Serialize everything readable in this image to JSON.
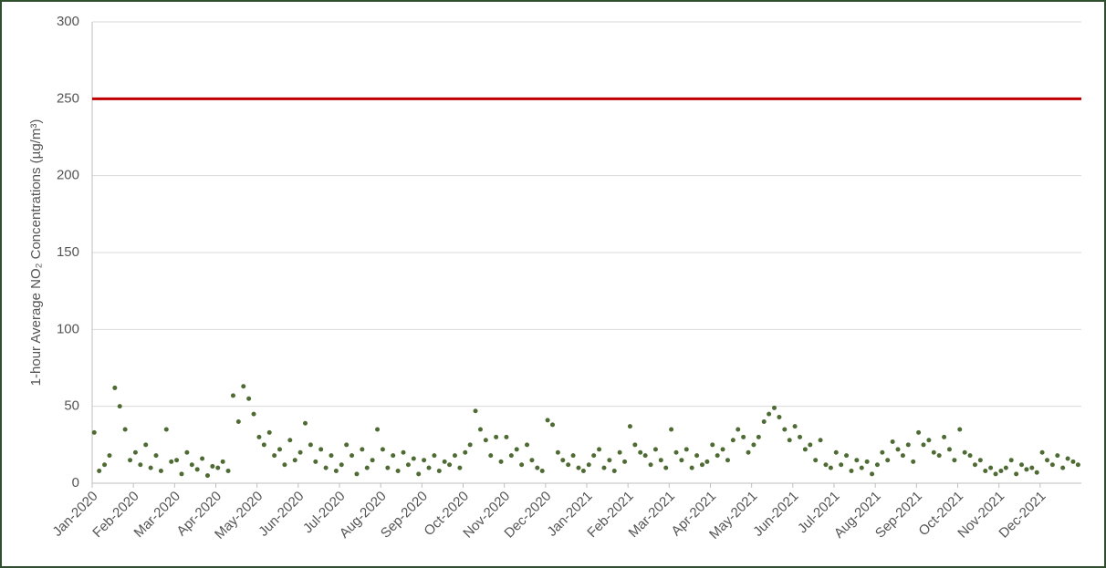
{
  "chart_data": {
    "type": "scatter",
    "y_label": "1-hour Average NO₂ Concentrations (µg/m³)",
    "ylim": [
      0,
      300
    ],
    "yticks": [
      0,
      50,
      100,
      150,
      200,
      250,
      300
    ],
    "xlim": [
      0,
      24
    ],
    "xticks": [
      {
        "value": 0,
        "label": "Jan-2020"
      },
      {
        "value": 1,
        "label": "Feb-2020"
      },
      {
        "value": 2,
        "label": "Mar-2020"
      },
      {
        "value": 3,
        "label": "Apr-2020"
      },
      {
        "value": 4,
        "label": "May-2020"
      },
      {
        "value": 5,
        "label": "Jun-2020"
      },
      {
        "value": 6,
        "label": "Jul-2020"
      },
      {
        "value": 7,
        "label": "Aug-2020"
      },
      {
        "value": 8,
        "label": "Sep-2020"
      },
      {
        "value": 9,
        "label": "Oct-2020"
      },
      {
        "value": 10,
        "label": "Nov-2020"
      },
      {
        "value": 11,
        "label": "Dec-2020"
      },
      {
        "value": 12,
        "label": "Jan-2021"
      },
      {
        "value": 13,
        "label": "Feb-2021"
      },
      {
        "value": 14,
        "label": "Mar-2021"
      },
      {
        "value": 15,
        "label": "Apr-2021"
      },
      {
        "value": 16,
        "label": "May-2021"
      },
      {
        "value": 17,
        "label": "Jun-2021"
      },
      {
        "value": 18,
        "label": "Jul-2021"
      },
      {
        "value": 19,
        "label": "Aug-2021"
      },
      {
        "value": 20,
        "label": "Sep-2021"
      },
      {
        "value": 21,
        "label": "Oct-2021"
      },
      {
        "value": 22,
        "label": "Nov-2021"
      },
      {
        "value": 23,
        "label": "Dec-2021"
      }
    ],
    "grid": true,
    "reference_line": {
      "value": 250,
      "color": "#c00000"
    },
    "series": [
      {
        "color": "#4e6b34",
        "x": [
          0.05,
          0.17,
          0.3,
          0.42,
          0.55,
          0.67,
          0.8,
          0.92,
          1.05,
          1.17,
          1.3,
          1.42,
          1.55,
          1.67,
          1.8,
          1.92,
          2.05,
          2.17,
          2.3,
          2.42,
          2.55,
          2.67,
          2.8,
          2.92,
          3.05,
          3.17,
          3.3,
          3.42,
          3.55,
          3.67,
          3.8,
          3.92,
          4.05,
          4.17,
          4.3,
          4.42,
          4.55,
          4.67,
          4.8,
          4.92,
          5.05,
          5.17,
          5.3,
          5.42,
          5.55,
          5.67,
          5.8,
          5.92,
          6.05,
          6.17,
          6.3,
          6.42,
          6.55,
          6.67,
          6.8,
          6.92,
          7.05,
          7.17,
          7.3,
          7.42,
          7.55,
          7.67,
          7.8,
          7.92,
          8.05,
          8.17,
          8.3,
          8.42,
          8.55,
          8.67,
          8.8,
          8.92,
          9.05,
          9.17,
          9.3,
          9.42,
          9.55,
          9.67,
          9.8,
          9.92,
          10.05,
          10.17,
          10.3,
          10.42,
          10.55,
          10.67,
          10.8,
          10.92,
          11.05,
          11.17,
          11.3,
          11.42,
          11.55,
          11.67,
          11.8,
          11.92,
          12.05,
          12.17,
          12.3,
          12.42,
          12.55,
          12.67,
          12.8,
          12.92,
          13.05,
          13.17,
          13.3,
          13.42,
          13.55,
          13.67,
          13.8,
          13.92,
          14.05,
          14.17,
          14.3,
          14.42,
          14.55,
          14.67,
          14.8,
          14.92,
          15.05,
          15.17,
          15.3,
          15.42,
          15.55,
          15.67,
          15.8,
          15.92,
          16.05,
          16.17,
          16.3,
          16.42,
          16.55,
          16.67,
          16.8,
          16.92,
          17.05,
          17.17,
          17.3,
          17.42,
          17.55,
          17.67,
          17.8,
          17.92,
          18.05,
          18.17,
          18.3,
          18.42,
          18.55,
          18.67,
          18.8,
          18.92,
          19.05,
          19.17,
          19.3,
          19.42,
          19.55,
          19.67,
          19.8,
          19.92,
          20.05,
          20.17,
          20.3,
          20.42,
          20.55,
          20.67,
          20.8,
          20.92,
          21.05,
          21.17,
          21.3,
          21.42,
          21.55,
          21.67,
          21.8,
          21.92,
          22.05,
          22.17,
          22.3,
          22.42,
          22.55,
          22.67,
          22.8,
          22.92,
          23.05,
          23.17,
          23.3,
          23.42,
          23.55,
          23.67,
          23.8,
          23.92
        ],
        "values": [
          33,
          8,
          12,
          18,
          62,
          50,
          35,
          15,
          20,
          12,
          25,
          10,
          18,
          8,
          35,
          14,
          15,
          6,
          20,
          12,
          9,
          16,
          5,
          11,
          10,
          14,
          8,
          57,
          40,
          63,
          55,
          45,
          30,
          25,
          33,
          18,
          22,
          12,
          28,
          15,
          20,
          39,
          25,
          14,
          22,
          10,
          18,
          8,
          12,
          25,
          18,
          6,
          22,
          10,
          15,
          35,
          22,
          10,
          18,
          8,
          20,
          12,
          16,
          6,
          15,
          10,
          18,
          8,
          14,
          12,
          18,
          10,
          20,
          25,
          47,
          35,
          28,
          18,
          30,
          14,
          30,
          18,
          22,
          12,
          25,
          15,
          10,
          8,
          41,
          38,
          20,
          15,
          12,
          18,
          10,
          8,
          12,
          18,
          22,
          10,
          15,
          8,
          20,
          14,
          37,
          25,
          20,
          18,
          12,
          22,
          15,
          10,
          35,
          20,
          15,
          22,
          10,
          18,
          12,
          14,
          25,
          18,
          22,
          15,
          28,
          35,
          30,
          20,
          25,
          30,
          40,
          45,
          49,
          43,
          35,
          28,
          37,
          30,
          22,
          25,
          15,
          28,
          12,
          10,
          20,
          12,
          18,
          8,
          15,
          10,
          14,
          6,
          12,
          20,
          15,
          27,
          22,
          18,
          25,
          14,
          33,
          25,
          28,
          20,
          18,
          30,
          22,
          15,
          35,
          20,
          18,
          12,
          15,
          8,
          10,
          6,
          8,
          10,
          15,
          6,
          12,
          9,
          10,
          7,
          20,
          15,
          12,
          18,
          10,
          16,
          14,
          12
        ]
      }
    ]
  }
}
